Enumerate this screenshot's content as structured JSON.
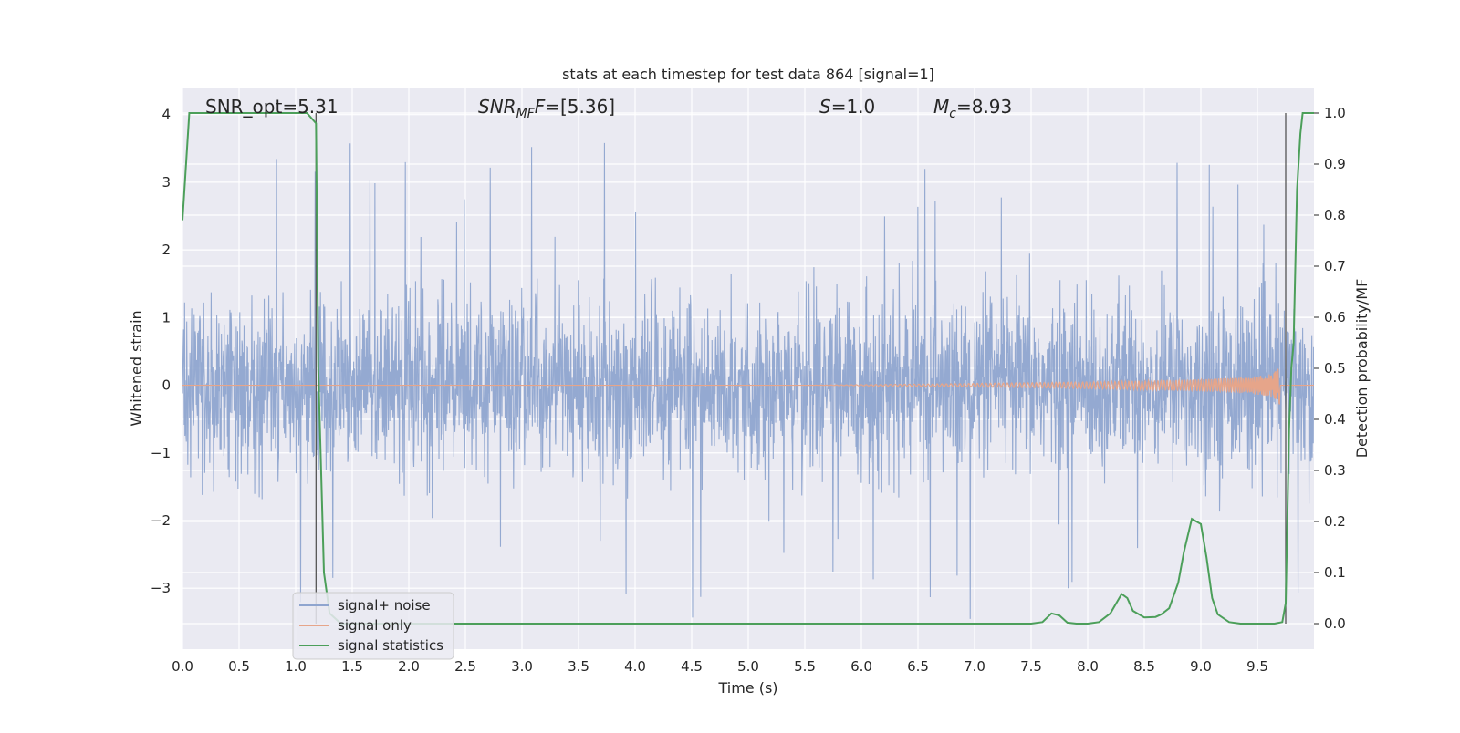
{
  "chart_data": {
    "type": "line",
    "title": "stats at each timestep for test data 864 [signal=1]",
    "xlabel": "Time (s)",
    "ylabel": "Whitened strain",
    "ylabel_right": "Detection probability/MF",
    "xlim": [
      0.0,
      10.0
    ],
    "ylim": [
      -3.9,
      4.4
    ],
    "ylim_right": [
      -0.05,
      1.05
    ],
    "x_ticks": [
      "0.0",
      "0.5",
      "1.0",
      "1.5",
      "2.0",
      "2.5",
      "3.0",
      "3.5",
      "4.0",
      "4.5",
      "5.0",
      "5.5",
      "6.0",
      "6.5",
      "7.0",
      "7.5",
      "8.0",
      "8.5",
      "9.0",
      "9.5"
    ],
    "y_ticks": [
      "4",
      "3",
      "2",
      "1",
      "0",
      "−1",
      "−2",
      "−3"
    ],
    "y_right_ticks": [
      "1.0",
      "0.9",
      "0.8",
      "0.7",
      "0.6",
      "0.5",
      "0.4",
      "0.3",
      "0.2",
      "0.1",
      "0.0"
    ],
    "grid": true,
    "legend_position": "lower-left",
    "annotations": {
      "snr_opt": "SNR_opt=5.31",
      "snr_mf_main": "SNR",
      "snr_mf_sub": "MF",
      "snr_mf_rest": "=[5.36]",
      "s_main": "S",
      "s_rest": "=1.0",
      "mc_main": "M",
      "mc_sub": "c",
      "mc_rest": "=8.93"
    },
    "series": [
      {
        "name": "signal+ noise",
        "color": "#8fa5cf",
        "description_values": "whitened noisy strain, roughly within [-1.4, 1.4] with spikes up to about 4.0 and down to about -3.5"
      },
      {
        "name": "signal only",
        "color": "#e6a58a",
        "chirp_end_time": 9.7,
        "chirp_max_amplitude": 0.55
      },
      {
        "name": "signal statistics",
        "color": "#4c9f5a",
        "x": [
          0.0,
          0.06,
          0.1,
          0.2,
          0.5,
          1.0,
          1.1,
          1.18,
          1.2,
          1.25,
          1.3,
          1.4,
          1.5,
          2.0,
          3.0,
          4.0,
          5.0,
          6.0,
          7.0,
          7.5,
          7.6,
          7.68,
          7.75,
          7.82,
          7.9,
          8.0,
          8.1,
          8.2,
          8.3,
          8.35,
          8.4,
          8.5,
          8.6,
          8.65,
          8.72,
          8.8,
          8.85,
          8.92,
          9.0,
          9.05,
          9.1,
          9.15,
          9.25,
          9.35,
          9.45,
          9.55,
          9.65,
          9.72,
          9.75,
          9.78,
          9.8,
          9.82,
          9.85,
          9.88,
          9.9,
          9.93,
          9.97,
          10.0
        ],
        "y": [
          0.79,
          1.0,
          1.0,
          1.0,
          1.0,
          1.0,
          1.0,
          0.98,
          0.5,
          0.1,
          0.02,
          0.0,
          0.0,
          0.0,
          0.0,
          0.0,
          0.0,
          0.0,
          0.0,
          0.0,
          0.003,
          0.02,
          0.016,
          0.002,
          0.0,
          0.0,
          0.003,
          0.02,
          0.058,
          0.05,
          0.025,
          0.012,
          0.013,
          0.018,
          0.03,
          0.08,
          0.14,
          0.205,
          0.195,
          0.13,
          0.05,
          0.018,
          0.003,
          0.0,
          0.0,
          0.0,
          0.0,
          0.003,
          0.04,
          0.38,
          0.5,
          0.55,
          0.85,
          0.96,
          1.0,
          1.0,
          1.0,
          1.0
        ]
      }
    ],
    "vertical_lines": [
      1.18,
      9.75
    ]
  }
}
